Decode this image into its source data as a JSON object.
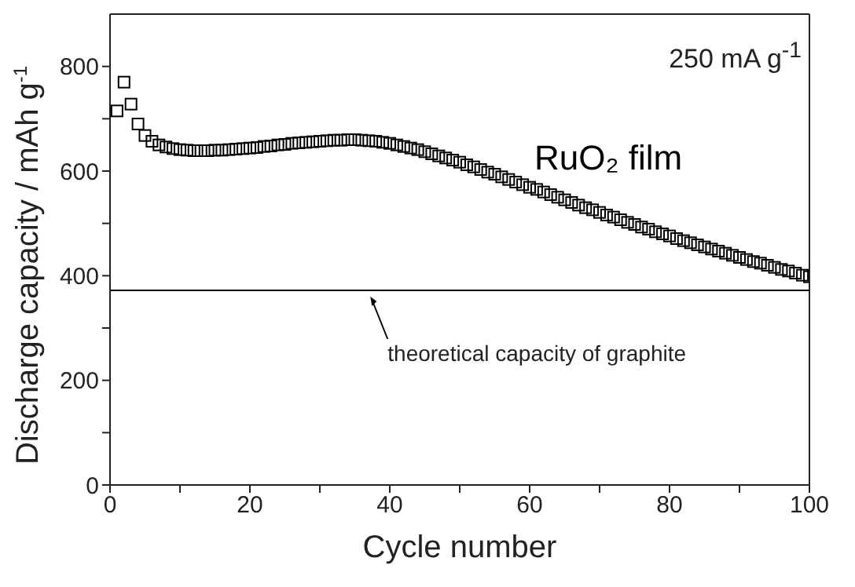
{
  "chart_data": {
    "type": "scatter",
    "xlabel": "Cycle number",
    "ylabel": "Discharge capacity / mAh g$^{-1}$",
    "x": [
      1,
      2,
      3,
      4,
      5,
      6,
      7,
      8,
      9,
      10,
      11,
      12,
      13,
      14,
      15,
      16,
      17,
      18,
      19,
      20,
      21,
      22,
      23,
      24,
      25,
      26,
      27,
      28,
      29,
      30,
      31,
      32,
      33,
      34,
      35,
      36,
      37,
      38,
      39,
      40,
      41,
      42,
      43,
      44,
      45,
      46,
      47,
      48,
      49,
      50,
      51,
      52,
      53,
      54,
      55,
      56,
      57,
      58,
      59,
      60,
      61,
      62,
      63,
      64,
      65,
      66,
      67,
      68,
      69,
      70,
      71,
      72,
      73,
      74,
      75,
      76,
      77,
      78,
      79,
      80,
      81,
      82,
      83,
      84,
      85,
      86,
      87,
      88,
      89,
      90,
      91,
      92,
      93,
      94,
      95,
      96,
      97,
      98,
      99,
      100
    ],
    "series": [
      {
        "name": "RuO₂ film",
        "color": "#000000",
        "values": [
          715,
          770,
          728,
          690,
          668,
          657,
          650,
          646,
          643,
          641,
          640,
          639,
          639,
          639,
          640,
          640,
          641,
          642,
          643,
          644,
          645,
          647,
          648,
          650,
          651,
          653,
          654,
          655,
          656,
          657,
          658,
          659,
          659,
          660,
          660,
          659,
          658,
          657,
          655,
          653,
          650,
          647,
          644,
          641,
          637,
          633,
          629,
          625,
          621,
          617,
          612,
          608,
          603,
          598,
          594,
          589,
          584,
          579,
          574,
          569,
          565,
          560,
          555,
          550,
          545,
          540,
          535,
          530,
          526,
          521,
          516,
          512,
          507,
          502,
          498,
          493,
          489,
          484,
          480,
          476,
          471,
          467,
          463,
          459,
          455,
          451,
          447,
          443,
          439,
          435,
          431,
          427,
          424,
          420,
          416,
          412,
          409,
          405,
          401,
          398
        ]
      }
    ],
    "marker": "square",
    "xlim": [
      0,
      100
    ],
    "xticks": [
      0,
      {
        "value": 10,
        "label": null
      },
      20,
      {
        "value": 30,
        "label": null
      },
      40,
      {
        "value": 50,
        "label": null
      },
      60,
      {
        "value": 70,
        "label": null
      },
      80,
      {
        "value": 90,
        "label": null
      },
      100
    ],
    "ylim": [
      0,
      900
    ],
    "yticks": [
      0,
      {
        "value": 100,
        "label": null
      },
      200,
      {
        "value": 300,
        "label": null
      },
      400,
      {
        "value": 500,
        "label": null
      },
      600,
      {
        "value": 700,
        "label": null
      },
      800
    ],
    "ref_lines": [
      {
        "axis": "y",
        "value": 372,
        "label": "theoretical capacity of graphite",
        "color": "#000000"
      }
    ],
    "annotations": [
      "250 mA g$^{-1}$"
    ]
  }
}
